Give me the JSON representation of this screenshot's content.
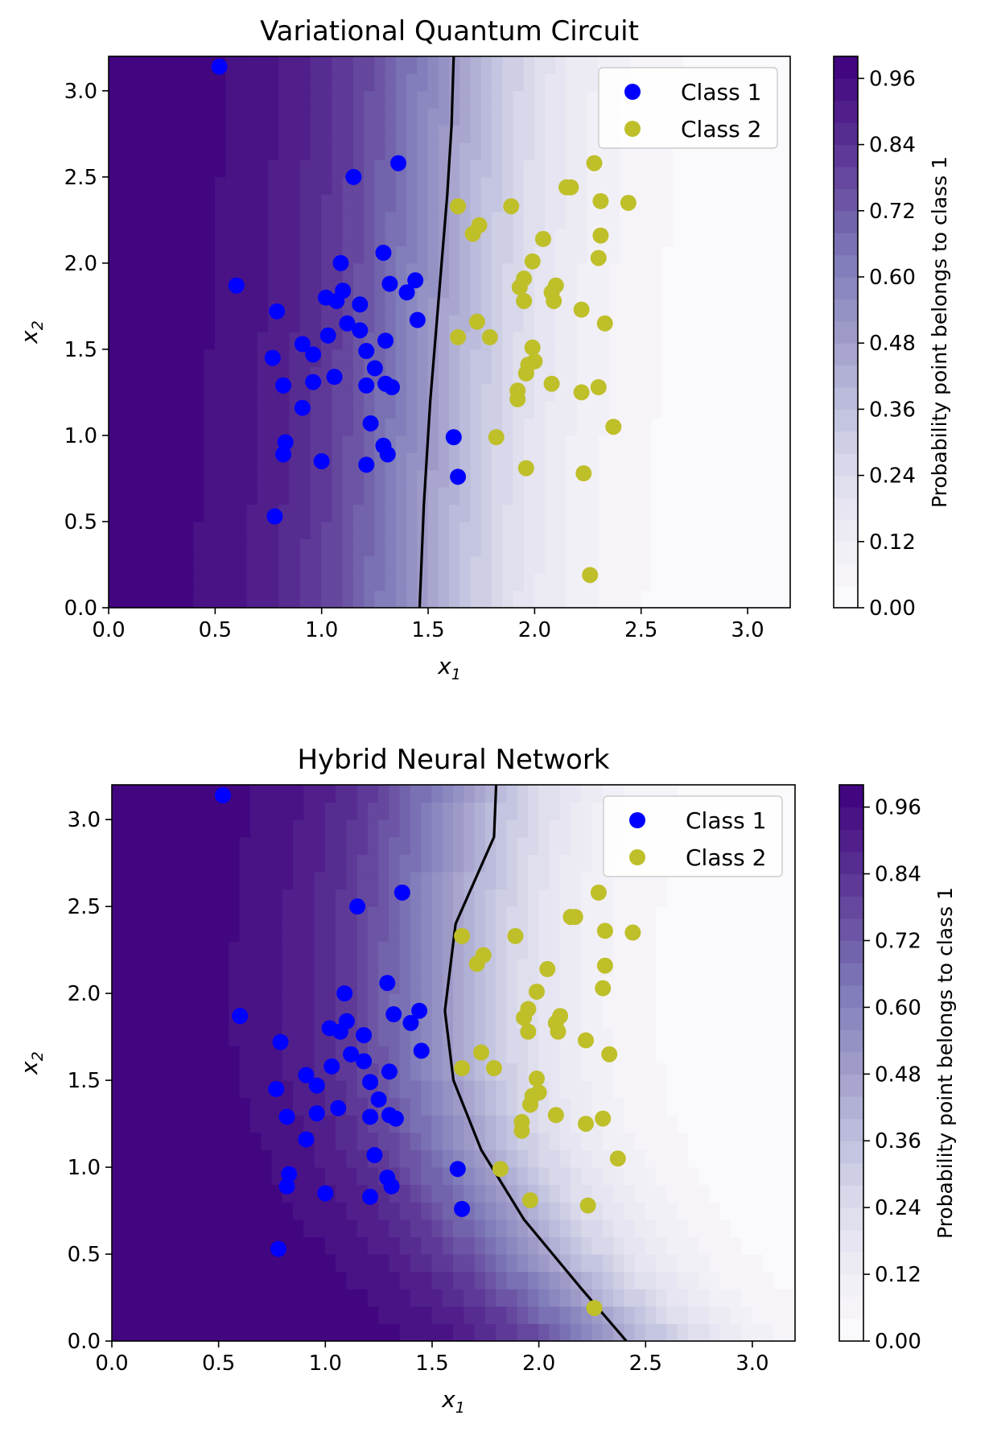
{
  "colors": {
    "class1": "#0000ff",
    "class2": "#bfbf2a",
    "colormap_high": "#3f007d",
    "colormap_low": "#fcfbfd",
    "boundary": "#000000"
  },
  "chart_data": [
    {
      "type": "scatter",
      "title": "Variational Quantum Circuit",
      "xlabel_main": "x",
      "xlabel_sub": "1",
      "ylabel_main": "x",
      "ylabel_sub": "2",
      "xlim": [
        0,
        3.2
      ],
      "ylim": [
        0,
        3.2
      ],
      "xticks": [
        "0.0",
        "0.5",
        "1.0",
        "1.5",
        "2.0",
        "2.5",
        "3.0"
      ],
      "yticks": [
        "0.0",
        "0.5",
        "1.0",
        "1.5",
        "2.0",
        "2.5",
        "3.0"
      ],
      "legend_position": "top-right",
      "background": "filled contour of probability (dark purple = 1 at left, white = 0 at right)",
      "decision_boundary": [
        [
          1.46,
          0.0
        ],
        [
          1.48,
          0.6
        ],
        [
          1.51,
          1.2
        ],
        [
          1.55,
          1.8
        ],
        [
          1.59,
          2.4
        ],
        [
          1.61,
          2.8
        ],
        [
          1.62,
          3.2
        ]
      ],
      "colorbar": {
        "label": "Probability point belongs to class 1",
        "ticks": [
          "0.00",
          "0.12",
          "0.24",
          "0.36",
          "0.48",
          "0.60",
          "0.72",
          "0.84",
          "0.96"
        ],
        "range": [
          0,
          1
        ]
      },
      "series": [
        {
          "name": "Class 1",
          "points": [
            [
              0.52,
              3.14
            ],
            [
              1.15,
              2.5
            ],
            [
              1.36,
              2.58
            ],
            [
              0.6,
              1.87
            ],
            [
              1.29,
              2.06
            ],
            [
              1.09,
              2.0
            ],
            [
              1.1,
              1.84
            ],
            [
              1.07,
              1.78
            ],
            [
              1.02,
              1.8
            ],
            [
              0.79,
              1.72
            ],
            [
              1.18,
              1.76
            ],
            [
              1.32,
              1.88
            ],
            [
              1.44,
              1.9
            ],
            [
              1.4,
              1.83
            ],
            [
              1.45,
              1.67
            ],
            [
              1.12,
              1.65
            ],
            [
              1.18,
              1.61
            ],
            [
              1.03,
              1.58
            ],
            [
              0.91,
              1.53
            ],
            [
              0.96,
              1.47
            ],
            [
              0.77,
              1.45
            ],
            [
              1.21,
              1.49
            ],
            [
              1.3,
              1.55
            ],
            [
              1.25,
              1.39
            ],
            [
              1.06,
              1.34
            ],
            [
              0.96,
              1.31
            ],
            [
              0.82,
              1.29
            ],
            [
              1.21,
              1.29
            ],
            [
              1.3,
              1.3
            ],
            [
              1.33,
              1.28
            ],
            [
              0.91,
              1.16
            ],
            [
              1.23,
              1.07
            ],
            [
              0.83,
              0.96
            ],
            [
              0.82,
              0.89
            ],
            [
              1.29,
              0.94
            ],
            [
              1.31,
              0.89
            ],
            [
              1.0,
              0.85
            ],
            [
              1.21,
              0.83
            ],
            [
              0.78,
              0.53
            ],
            [
              1.62,
              0.99
            ],
            [
              1.64,
              0.76
            ]
          ]
        },
        {
          "name": "Class 2",
          "points": [
            [
              1.64,
              2.33
            ],
            [
              1.71,
              2.17
            ],
            [
              1.74,
              2.22
            ],
            [
              1.89,
              2.33
            ],
            [
              2.04,
              2.14
            ],
            [
              2.15,
              2.44
            ],
            [
              2.17,
              2.44
            ],
            [
              2.28,
              2.58
            ],
            [
              2.31,
              2.36
            ],
            [
              2.44,
              2.35
            ],
            [
              2.31,
              2.16
            ],
            [
              2.3,
              2.03
            ],
            [
              1.99,
              2.01
            ],
            [
              1.95,
              1.91
            ],
            [
              1.93,
              1.86
            ],
            [
              1.95,
              1.78
            ],
            [
              2.08,
              1.83
            ],
            [
              2.1,
              1.87
            ],
            [
              2.09,
              1.78
            ],
            [
              2.22,
              1.73
            ],
            [
              1.73,
              1.66
            ],
            [
              1.79,
              1.57
            ],
            [
              1.64,
              1.57
            ],
            [
              2.33,
              1.65
            ],
            [
              1.99,
              1.51
            ],
            [
              1.97,
              1.41
            ],
            [
              2.0,
              1.43
            ],
            [
              1.96,
              1.36
            ],
            [
              2.08,
              1.3
            ],
            [
              1.92,
              1.26
            ],
            [
              1.92,
              1.21
            ],
            [
              2.22,
              1.25
            ],
            [
              2.3,
              1.28
            ],
            [
              2.37,
              1.05
            ],
            [
              1.82,
              0.99
            ],
            [
              1.96,
              0.81
            ],
            [
              2.23,
              0.78
            ],
            [
              2.26,
              0.19
            ]
          ]
        }
      ]
    },
    {
      "type": "scatter",
      "title": "Hybrid Neural Network",
      "xlabel_main": "x",
      "xlabel_sub": "1",
      "ylabel_main": "x",
      "ylabel_sub": "2",
      "xlim": [
        0,
        3.2
      ],
      "ylim": [
        0,
        3.2
      ],
      "xticks": [
        "0.0",
        "0.5",
        "1.0",
        "1.5",
        "2.0",
        "2.5",
        "3.0"
      ],
      "yticks": [
        "0.0",
        "0.5",
        "1.0",
        "1.5",
        "2.0",
        "2.5",
        "3.0"
      ],
      "legend_position": "top-right",
      "background": "filled contour of probability (dark purple = 1 at left, white = 0 at right)",
      "decision_boundary": [
        [
          2.41,
          0.0
        ],
        [
          2.2,
          0.3
        ],
        [
          1.93,
          0.7
        ],
        [
          1.73,
          1.1
        ],
        [
          1.6,
          1.5
        ],
        [
          1.56,
          1.9
        ],
        [
          1.61,
          2.4
        ],
        [
          1.79,
          2.9
        ],
        [
          1.8,
          3.2
        ]
      ],
      "colorbar": {
        "label": "Probability point belongs to class 1",
        "ticks": [
          "0.00",
          "0.12",
          "0.24",
          "0.36",
          "0.48",
          "0.60",
          "0.72",
          "0.84",
          "0.96"
        ],
        "range": [
          0,
          1
        ]
      },
      "series": [
        {
          "name": "Class 1",
          "points": [
            [
              0.52,
              3.14
            ],
            [
              1.15,
              2.5
            ],
            [
              1.36,
              2.58
            ],
            [
              0.6,
              1.87
            ],
            [
              1.29,
              2.06
            ],
            [
              1.09,
              2.0
            ],
            [
              1.1,
              1.84
            ],
            [
              1.07,
              1.78
            ],
            [
              1.02,
              1.8
            ],
            [
              0.79,
              1.72
            ],
            [
              1.18,
              1.76
            ],
            [
              1.32,
              1.88
            ],
            [
              1.44,
              1.9
            ],
            [
              1.4,
              1.83
            ],
            [
              1.45,
              1.67
            ],
            [
              1.12,
              1.65
            ],
            [
              1.18,
              1.61
            ],
            [
              1.03,
              1.58
            ],
            [
              0.91,
              1.53
            ],
            [
              0.96,
              1.47
            ],
            [
              0.77,
              1.45
            ],
            [
              1.21,
              1.49
            ],
            [
              1.3,
              1.55
            ],
            [
              1.25,
              1.39
            ],
            [
              1.06,
              1.34
            ],
            [
              0.96,
              1.31
            ],
            [
              0.82,
              1.29
            ],
            [
              1.21,
              1.29
            ],
            [
              1.3,
              1.3
            ],
            [
              1.33,
              1.28
            ],
            [
              0.91,
              1.16
            ],
            [
              1.23,
              1.07
            ],
            [
              0.83,
              0.96
            ],
            [
              0.82,
              0.89
            ],
            [
              1.29,
              0.94
            ],
            [
              1.31,
              0.89
            ],
            [
              1.0,
              0.85
            ],
            [
              1.21,
              0.83
            ],
            [
              0.78,
              0.53
            ],
            [
              1.62,
              0.99
            ],
            [
              1.64,
              0.76
            ]
          ]
        },
        {
          "name": "Class 2",
          "points": [
            [
              1.64,
              2.33
            ],
            [
              1.71,
              2.17
            ],
            [
              1.74,
              2.22
            ],
            [
              1.89,
              2.33
            ],
            [
              2.04,
              2.14
            ],
            [
              2.15,
              2.44
            ],
            [
              2.17,
              2.44
            ],
            [
              2.28,
              2.58
            ],
            [
              2.31,
              2.36
            ],
            [
              2.44,
              2.35
            ],
            [
              2.31,
              2.16
            ],
            [
              2.3,
              2.03
            ],
            [
              1.99,
              2.01
            ],
            [
              1.95,
              1.91
            ],
            [
              1.93,
              1.86
            ],
            [
              1.95,
              1.78
            ],
            [
              2.08,
              1.83
            ],
            [
              2.1,
              1.87
            ],
            [
              2.09,
              1.78
            ],
            [
              2.22,
              1.73
            ],
            [
              1.73,
              1.66
            ],
            [
              1.79,
              1.57
            ],
            [
              1.64,
              1.57
            ],
            [
              2.33,
              1.65
            ],
            [
              1.99,
              1.51
            ],
            [
              1.97,
              1.41
            ],
            [
              2.0,
              1.43
            ],
            [
              1.96,
              1.36
            ],
            [
              2.08,
              1.3
            ],
            [
              1.92,
              1.26
            ],
            [
              1.92,
              1.21
            ],
            [
              2.22,
              1.25
            ],
            [
              2.3,
              1.28
            ],
            [
              2.37,
              1.05
            ],
            [
              1.82,
              0.99
            ],
            [
              1.96,
              0.81
            ],
            [
              2.23,
              0.78
            ],
            [
              2.26,
              0.19
            ]
          ]
        }
      ]
    }
  ]
}
